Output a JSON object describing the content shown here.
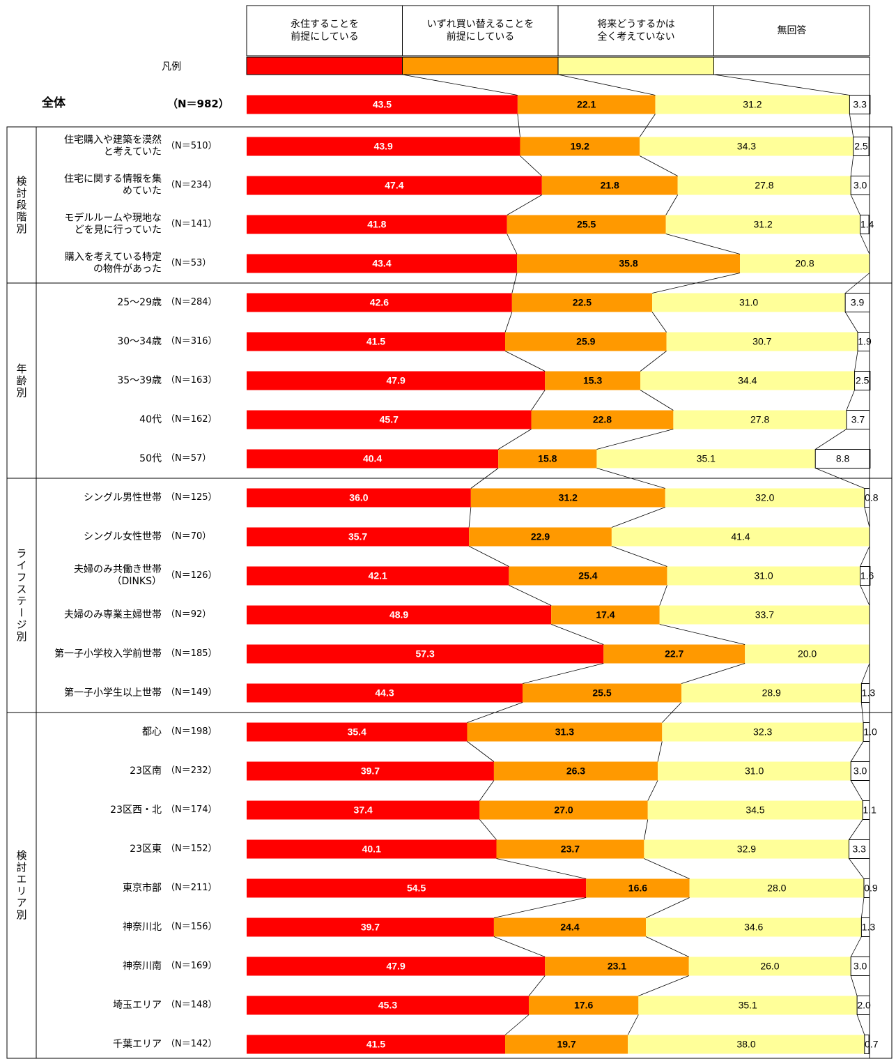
{
  "chart_data": {
    "type": "bar",
    "orientation": "horizontal",
    "stacked": true,
    "legend_label": "凡例",
    "xlim": [
      0,
      100
    ],
    "series": [
      {
        "name": "永住することを\n前提にしている",
        "color": "#ff0000",
        "values": [
          43.5,
          43.9,
          47.4,
          41.8,
          43.4,
          42.6,
          41.5,
          47.9,
          45.7,
          40.4,
          36.0,
          35.7,
          42.1,
          48.9,
          57.3,
          44.3,
          35.4,
          39.7,
          37.4,
          40.1,
          54.5,
          39.7,
          47.9,
          45.3,
          41.5
        ],
        "value_labels": [
          "43.5",
          "43.9",
          "47.4",
          "41.8",
          "43.4",
          "42.6",
          "41.5",
          "47.9",
          "45.7",
          "40.4",
          "36.0",
          "35.7",
          "42.1",
          "48.9",
          "57.3",
          "44.3",
          "35.4",
          "39.7",
          "37.4",
          "40.1",
          "54.5",
          "39.7",
          "47.9",
          "45.3",
          "41.5"
        ]
      },
      {
        "name": "いずれ買い替えることを\n前提にしている",
        "color": "#ff9900",
        "values": [
          22.1,
          19.2,
          21.8,
          25.5,
          35.8,
          22.5,
          25.9,
          15.3,
          22.8,
          15.8,
          31.2,
          22.9,
          25.4,
          17.4,
          22.7,
          25.5,
          31.3,
          26.3,
          27.0,
          23.7,
          16.6,
          24.4,
          23.1,
          17.6,
          19.7
        ],
        "value_labels": [
          "22.1",
          "19.2",
          "21.8",
          "25.5",
          "35.8",
          "22.5",
          "25.9",
          "15.3",
          "22.8",
          "15.8",
          "31.2",
          "22.9",
          "25.4",
          "17.4",
          "22.7",
          "25.5",
          "31.3",
          "26.3",
          "27.0",
          "23.7",
          "16.6",
          "24.4",
          "23.1",
          "17.6",
          "19.7"
        ]
      },
      {
        "name": "将来どうするかは\n全く考えていない",
        "color": "#ffff99",
        "values": [
          31.2,
          34.3,
          27.8,
          31.2,
          20.8,
          31.0,
          30.7,
          34.4,
          27.8,
          35.1,
          32.0,
          41.4,
          31.0,
          33.7,
          20.0,
          28.9,
          32.3,
          31.0,
          34.5,
          32.9,
          28.0,
          34.6,
          26.0,
          35.1,
          38.0
        ],
        "value_labels": [
          "31.2",
          "34.3",
          "27.8",
          "31.2",
          "20.8",
          "31.0",
          "30.7",
          "34.4",
          "27.8",
          "35.1",
          "32.0",
          "41.4",
          "31.0",
          "33.7",
          "20.0",
          "28.9",
          "32.3",
          "31.0",
          "34.5",
          "32.9",
          "28.0",
          "34.6",
          "26.0",
          "35.1",
          "38.0"
        ]
      },
      {
        "name": "無回答",
        "color": "#ffffff",
        "values": [
          3.3,
          2.5,
          3.0,
          1.4,
          null,
          3.9,
          1.9,
          2.5,
          3.7,
          8.8,
          0.8,
          null,
          1.6,
          null,
          null,
          1.3,
          1.0,
          3.0,
          1.1,
          3.3,
          0.9,
          1.3,
          3.0,
          2.0,
          0.7
        ],
        "value_labels": [
          "3.3",
          "2.5",
          "3.0",
          "1.4",
          null,
          "3.9",
          "1.9",
          "2.5",
          "3.7",
          "8.8",
          "0.8",
          null,
          "1.6",
          null,
          null,
          "1.3",
          "1.0",
          "3.0",
          "1.1",
          "3.3",
          "0.9",
          "1.3",
          "3.0",
          "2.0",
          "0.7"
        ]
      }
    ],
    "categories": [
      "全体",
      "住宅購入や建築を漠然\nと考えていた",
      "住宅に関する情報を集\nめていた",
      "モデルルームや現地な\nどを見に行っていた",
      "購入を考えている特定\nの物件があった",
      "25～29歳",
      "30～34歳",
      "35～39歳",
      "40代",
      "50代",
      "シングル男性世帯",
      "シングル女性世帯",
      "夫婦のみ共働き世帯\n（DINKS）",
      "夫婦のみ専業主婦世帯",
      "第一子小学校入学前世帯",
      "第一子小学生以上世帯",
      "都心",
      "23区南",
      "23区西・北",
      "23区東",
      "東京市部",
      "神奈川北",
      "神奈川南",
      "埼玉エリア",
      "千葉エリア"
    ],
    "n_labels": [
      "（N＝982）",
      "（N＝510）",
      "（N＝234）",
      "（N＝141）",
      "（N＝53）",
      "（N＝284）",
      "（N＝316）",
      "（N＝163）",
      "（N＝162）",
      "（N＝57）",
      "（N＝125）",
      "（N＝70）",
      "（N＝126）",
      "（N＝92）",
      "（N＝185）",
      "（N＝149）",
      "（N＝198）",
      "（N＝232）",
      "（N＝174）",
      "（N＝152）",
      "（N＝211）",
      "（N＝156）",
      "（N＝169）",
      "（N＝148）",
      "（N＝142）"
    ],
    "groups": [
      {
        "name": "検討段階別",
        "size": 4
      },
      {
        "name": "年齢別",
        "size": 5
      },
      {
        "name": "ライフステージ別",
        "size": 6
      },
      {
        "name": "検討エリア別",
        "size": 9
      }
    ]
  }
}
